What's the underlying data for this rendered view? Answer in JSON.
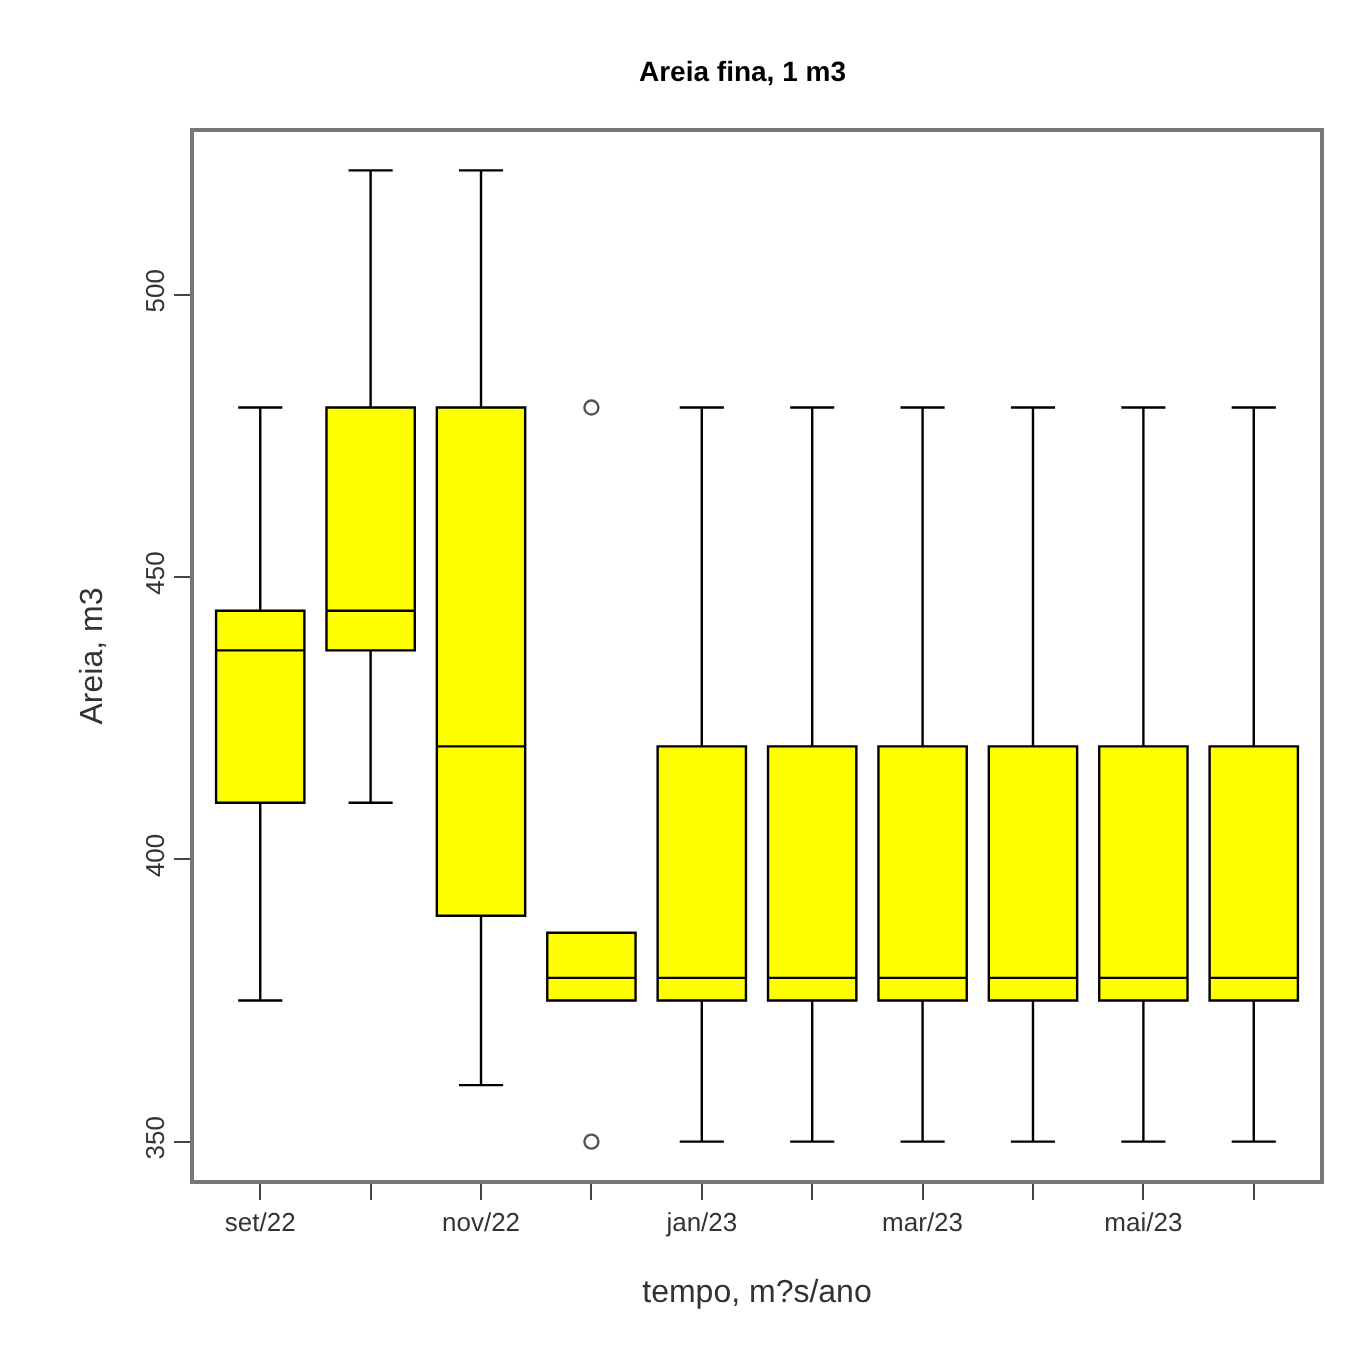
{
  "chart_data": {
    "type": "box",
    "title": "Areia fina, 1 m3",
    "xlabel": "tempo, m?s/ano",
    "ylabel": "Areia, m3",
    "categories": [
      "set/22",
      null,
      "nov/22",
      null,
      "jan/23",
      null,
      "mar/23",
      null,
      "mai/23",
      null
    ],
    "color": "#ffff00",
    "boxes": [
      {
        "low": 375,
        "q1": 410,
        "median": 437,
        "q3": 444,
        "high": 480
      },
      {
        "low": 410,
        "q1": 437,
        "median": 444,
        "q3": 480,
        "high": 522
      },
      {
        "low": 360,
        "q1": 390,
        "median": 420,
        "q3": 480,
        "high": 522
      },
      {
        "low": 375,
        "q1": 375,
        "median": 379,
        "q3": 387,
        "high": 387,
        "outliers": [
          480,
          350
        ]
      },
      {
        "low": 350,
        "q1": 375,
        "median": 379,
        "q3": 420,
        "high": 480
      },
      {
        "low": 350,
        "q1": 375,
        "median": 379,
        "q3": 420,
        "high": 480
      },
      {
        "low": 350,
        "q1": 375,
        "median": 379,
        "q3": 420,
        "high": 480
      },
      {
        "low": 350,
        "q1": 375,
        "median": 379,
        "q3": 420,
        "high": 480
      },
      {
        "low": 350,
        "q1": 375,
        "median": 379,
        "q3": 420,
        "high": 480
      },
      {
        "low": 350,
        "q1": 375,
        "median": 379,
        "q3": 420,
        "high": 480
      }
    ],
    "ylim": [
      343.2,
      528.8
    ],
    "yticks": [
      350,
      400,
      450,
      500
    ]
  }
}
